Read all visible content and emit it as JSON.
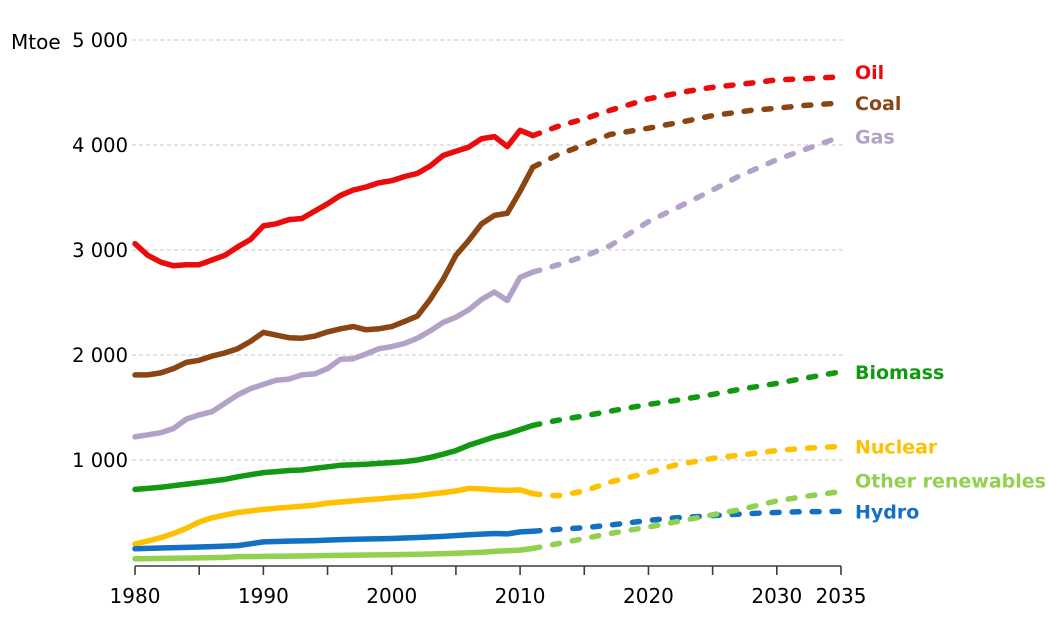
{
  "chart_data": {
    "type": "line",
    "title": "",
    "unit_label": "Mtoe",
    "x_axis": {
      "min": 1980,
      "max": 2035,
      "labeled_ticks": [
        1980,
        1990,
        2000,
        2010,
        2020,
        2030,
        2035
      ],
      "minor_tick_step": 5
    },
    "y_axis": {
      "min": 0,
      "max": 5000,
      "gridline_step": 1000,
      "gridline_values": [
        1000,
        2000,
        3000,
        4000,
        5000
      ],
      "tick_labels": [
        "1 000",
        "2 000",
        "3 000",
        "4 000",
        "5 000"
      ]
    },
    "projection_start_year": 2011,
    "line_style": {
      "solid_until": 2011,
      "dashed_after": 2011
    },
    "series": [
      {
        "id": "gas",
        "name": "Gas",
        "color": "#B3A2C7",
        "history": [
          [
            1980,
            1220
          ],
          [
            1981,
            1240
          ],
          [
            1982,
            1260
          ],
          [
            1983,
            1300
          ],
          [
            1984,
            1390
          ],
          [
            1985,
            1430
          ],
          [
            1986,
            1460
          ],
          [
            1987,
            1540
          ],
          [
            1988,
            1620
          ],
          [
            1989,
            1680
          ],
          [
            1990,
            1720
          ],
          [
            1991,
            1760
          ],
          [
            1992,
            1770
          ],
          [
            1993,
            1810
          ],
          [
            1994,
            1820
          ],
          [
            1995,
            1870
          ],
          [
            1996,
            1960
          ],
          [
            1997,
            1965
          ],
          [
            1998,
            2010
          ],
          [
            1999,
            2060
          ],
          [
            2000,
            2080
          ],
          [
            2001,
            2110
          ],
          [
            2002,
            2160
          ],
          [
            2003,
            2230
          ],
          [
            2004,
            2310
          ],
          [
            2005,
            2360
          ],
          [
            2006,
            2430
          ],
          [
            2007,
            2530
          ],
          [
            2008,
            2600
          ],
          [
            2009,
            2520
          ],
          [
            2010,
            2740
          ],
          [
            2011,
            2790
          ]
        ],
        "projection": [
          [
            2011,
            2790
          ],
          [
            2013,
            2860
          ],
          [
            2015,
            2940
          ],
          [
            2017,
            3040
          ],
          [
            2020,
            3270
          ],
          [
            2022,
            3390
          ],
          [
            2025,
            3570
          ],
          [
            2027,
            3700
          ],
          [
            2030,
            3860
          ],
          [
            2032,
            3950
          ],
          [
            2035,
            4080
          ]
        ]
      },
      {
        "id": "coal",
        "name": "Coal",
        "color": "#8B4513",
        "history": [
          [
            1980,
            1810
          ],
          [
            1981,
            1810
          ],
          [
            1982,
            1830
          ],
          [
            1983,
            1870
          ],
          [
            1984,
            1930
          ],
          [
            1985,
            1950
          ],
          [
            1986,
            1990
          ],
          [
            1987,
            2020
          ],
          [
            1988,
            2060
          ],
          [
            1989,
            2130
          ],
          [
            1990,
            2215
          ],
          [
            1991,
            2190
          ],
          [
            1992,
            2165
          ],
          [
            1993,
            2160
          ],
          [
            1994,
            2180
          ],
          [
            1995,
            2220
          ],
          [
            1996,
            2250
          ],
          [
            1997,
            2270
          ],
          [
            1998,
            2240
          ],
          [
            1999,
            2250
          ],
          [
            2000,
            2270
          ],
          [
            2001,
            2320
          ],
          [
            2002,
            2370
          ],
          [
            2003,
            2530
          ],
          [
            2004,
            2720
          ],
          [
            2005,
            2950
          ],
          [
            2006,
            3090
          ],
          [
            2007,
            3250
          ],
          [
            2008,
            3330
          ],
          [
            2009,
            3350
          ],
          [
            2010,
            3560
          ],
          [
            2011,
            3790
          ]
        ],
        "projection": [
          [
            2011,
            3790
          ],
          [
            2013,
            3910
          ],
          [
            2015,
            4000
          ],
          [
            2017,
            4100
          ],
          [
            2020,
            4160
          ],
          [
            2023,
            4230
          ],
          [
            2025,
            4280
          ],
          [
            2028,
            4330
          ],
          [
            2030,
            4350
          ],
          [
            2032,
            4375
          ],
          [
            2035,
            4400
          ]
        ]
      },
      {
        "id": "oil",
        "name": "Oil",
        "color": "#EA0B0B",
        "history": [
          [
            1980,
            3060
          ],
          [
            1981,
            2950
          ],
          [
            1982,
            2885
          ],
          [
            1983,
            2850
          ],
          [
            1984,
            2860
          ],
          [
            1985,
            2860
          ],
          [
            1986,
            2905
          ],
          [
            1987,
            2950
          ],
          [
            1988,
            3030
          ],
          [
            1989,
            3100
          ],
          [
            1990,
            3230
          ],
          [
            1991,
            3250
          ],
          [
            1992,
            3290
          ],
          [
            1993,
            3300
          ],
          [
            1994,
            3370
          ],
          [
            1995,
            3440
          ],
          [
            1996,
            3520
          ],
          [
            1997,
            3570
          ],
          [
            1998,
            3600
          ],
          [
            1999,
            3640
          ],
          [
            2000,
            3660
          ],
          [
            2001,
            3700
          ],
          [
            2002,
            3730
          ],
          [
            2003,
            3800
          ],
          [
            2004,
            3900
          ],
          [
            2005,
            3940
          ],
          [
            2006,
            3980
          ],
          [
            2007,
            4060
          ],
          [
            2008,
            4080
          ],
          [
            2009,
            3985
          ],
          [
            2010,
            4140
          ],
          [
            2011,
            4090
          ]
        ],
        "projection": [
          [
            2011,
            4090
          ],
          [
            2013,
            4180
          ],
          [
            2015,
            4250
          ],
          [
            2017,
            4330
          ],
          [
            2020,
            4440
          ],
          [
            2023,
            4510
          ],
          [
            2025,
            4550
          ],
          [
            2028,
            4590
          ],
          [
            2030,
            4620
          ],
          [
            2032,
            4630
          ],
          [
            2035,
            4650
          ]
        ]
      },
      {
        "id": "biomass",
        "name": "Biomass",
        "color": "#119911",
        "history": [
          [
            1980,
            720
          ],
          [
            1981,
            730
          ],
          [
            1982,
            740
          ],
          [
            1983,
            755
          ],
          [
            1984,
            770
          ],
          [
            1985,
            785
          ],
          [
            1986,
            800
          ],
          [
            1987,
            815
          ],
          [
            1988,
            840
          ],
          [
            1989,
            860
          ],
          [
            1990,
            880
          ],
          [
            1991,
            890
          ],
          [
            1992,
            900
          ],
          [
            1993,
            905
          ],
          [
            1994,
            920
          ],
          [
            1995,
            935
          ],
          [
            1996,
            950
          ],
          [
            1997,
            955
          ],
          [
            1998,
            960
          ],
          [
            1999,
            968
          ],
          [
            2000,
            975
          ],
          [
            2001,
            985
          ],
          [
            2002,
            1000
          ],
          [
            2003,
            1025
          ],
          [
            2004,
            1055
          ],
          [
            2005,
            1090
          ],
          [
            2006,
            1140
          ],
          [
            2007,
            1180
          ],
          [
            2008,
            1220
          ],
          [
            2009,
            1250
          ],
          [
            2010,
            1290
          ],
          [
            2011,
            1330
          ]
        ],
        "projection": [
          [
            2011,
            1330
          ],
          [
            2013,
            1380
          ],
          [
            2015,
            1420
          ],
          [
            2017,
            1465
          ],
          [
            2020,
            1530
          ],
          [
            2022,
            1565
          ],
          [
            2025,
            1625
          ],
          [
            2027,
            1670
          ],
          [
            2030,
            1730
          ],
          [
            2032,
            1775
          ],
          [
            2035,
            1840
          ]
        ]
      },
      {
        "id": "nuclear",
        "name": "Nuclear",
        "color": "#FFC000",
        "history": [
          [
            1980,
            200
          ],
          [
            1981,
            230
          ],
          [
            1982,
            260
          ],
          [
            1983,
            300
          ],
          [
            1984,
            350
          ],
          [
            1985,
            410
          ],
          [
            1986,
            450
          ],
          [
            1987,
            475
          ],
          [
            1988,
            500
          ],
          [
            1989,
            515
          ],
          [
            1990,
            530
          ],
          [
            1991,
            540
          ],
          [
            1992,
            550
          ],
          [
            1993,
            560
          ],
          [
            1994,
            570
          ],
          [
            1995,
            590
          ],
          [
            1996,
            600
          ],
          [
            1997,
            610
          ],
          [
            1998,
            620
          ],
          [
            1999,
            630
          ],
          [
            2000,
            640
          ],
          [
            2001,
            650
          ],
          [
            2002,
            660
          ],
          [
            2003,
            675
          ],
          [
            2004,
            690
          ],
          [
            2005,
            705
          ],
          [
            2006,
            730
          ],
          [
            2007,
            725
          ],
          [
            2008,
            715
          ],
          [
            2009,
            710
          ],
          [
            2010,
            715
          ],
          [
            2011,
            680
          ]
        ],
        "projection": [
          [
            2011,
            680
          ],
          [
            2012,
            665
          ],
          [
            2013,
            660
          ],
          [
            2015,
            705
          ],
          [
            2017,
            790
          ],
          [
            2020,
            880
          ],
          [
            2022,
            950
          ],
          [
            2025,
            1015
          ],
          [
            2028,
            1060
          ],
          [
            2030,
            1090
          ],
          [
            2032,
            1110
          ],
          [
            2035,
            1130
          ]
        ]
      },
      {
        "id": "hydro",
        "name": "Hydro",
        "color": "#1470C2",
        "history": [
          [
            1980,
            155
          ],
          [
            1982,
            162
          ],
          [
            1984,
            168
          ],
          [
            1986,
            175
          ],
          [
            1988,
            185
          ],
          [
            1990,
            220
          ],
          [
            1992,
            228
          ],
          [
            1994,
            232
          ],
          [
            1996,
            242
          ],
          [
            1998,
            248
          ],
          [
            2000,
            252
          ],
          [
            2002,
            262
          ],
          [
            2004,
            272
          ],
          [
            2006,
            288
          ],
          [
            2008,
            300
          ],
          [
            2009,
            296
          ],
          [
            2010,
            315
          ],
          [
            2011,
            322
          ]
        ],
        "projection": [
          [
            2011,
            322
          ],
          [
            2013,
            340
          ],
          [
            2015,
            355
          ],
          [
            2017,
            380
          ],
          [
            2020,
            425
          ],
          [
            2022,
            448
          ],
          [
            2025,
            470
          ],
          [
            2028,
            490
          ],
          [
            2030,
            500
          ],
          [
            2032,
            508
          ],
          [
            2035,
            510
          ]
        ]
      },
      {
        "id": "other_renewables",
        "name": "Other renewables",
        "color": "#92D050",
        "history": [
          [
            1980,
            60
          ],
          [
            1983,
            64
          ],
          [
            1985,
            68
          ],
          [
            1987,
            72
          ],
          [
            1988,
            80
          ],
          [
            1990,
            82
          ],
          [
            1993,
            86
          ],
          [
            1995,
            90
          ],
          [
            1998,
            95
          ],
          [
            2000,
            98
          ],
          [
            2003,
            105
          ],
          [
            2005,
            112
          ],
          [
            2007,
            122
          ],
          [
            2008,
            130
          ],
          [
            2010,
            142
          ],
          [
            2011,
            158
          ]
        ],
        "projection": [
          [
            2011,
            158
          ],
          [
            2013,
            205
          ],
          [
            2015,
            252
          ],
          [
            2017,
            300
          ],
          [
            2020,
            362
          ],
          [
            2022,
            408
          ],
          [
            2025,
            478
          ],
          [
            2027,
            525
          ],
          [
            2030,
            610
          ],
          [
            2032,
            650
          ],
          [
            2035,
            700
          ]
        ]
      }
    ],
    "legend_position": "right-of-lines",
    "grid": "horizontal-dashed",
    "colors": {
      "gridline": "#C8C8C8",
      "axis": "#3C3C3C",
      "tick_text": "#000000"
    }
  }
}
